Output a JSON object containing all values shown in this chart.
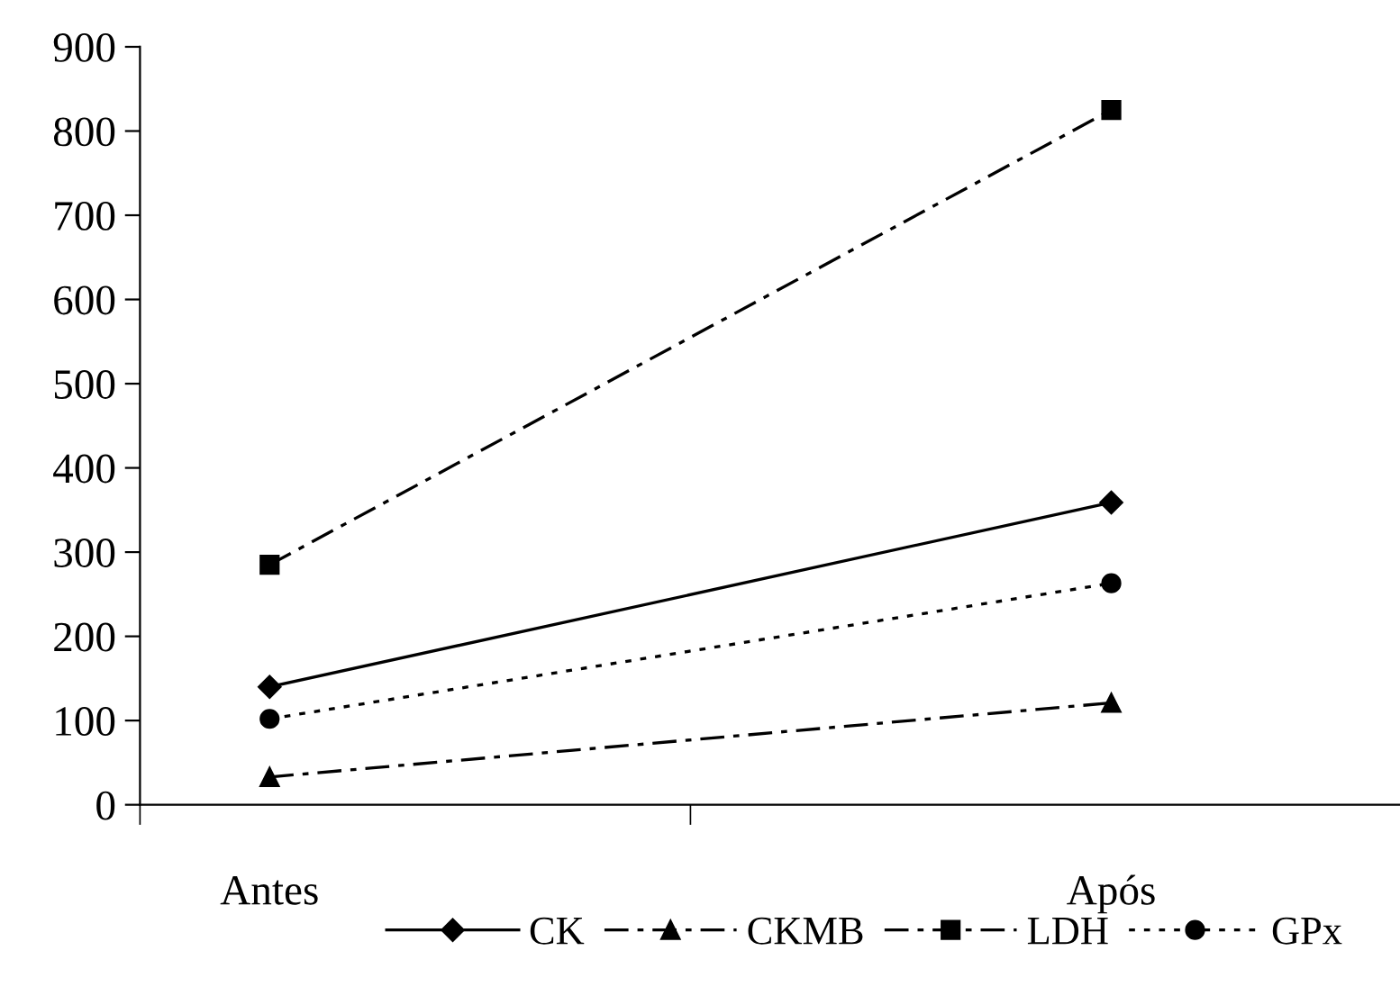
{
  "chart_data": {
    "type": "line",
    "categories": [
      "Antes",
      "Após"
    ],
    "series": [
      {
        "name": "CK",
        "color": "#000000",
        "values": [
          140,
          359
        ],
        "marker": "diamond",
        "line_style": "solid"
      },
      {
        "name": "CKMB",
        "color": "#000000",
        "values": [
          33,
          121
        ],
        "marker": "triangle",
        "line_style": "dashdot"
      },
      {
        "name": "LDH",
        "color": "#000000",
        "values": [
          285,
          825
        ],
        "marker": "square",
        "line_style": "dashdot"
      },
      {
        "name": "GPx",
        "color": "#000000",
        "values": [
          102,
          263
        ],
        "marker": "circle",
        "line_style": "dotted"
      }
    ],
    "ylim": [
      0,
      900
    ],
    "yticks": [
      0,
      100,
      200,
      300,
      400,
      500,
      600,
      700,
      800,
      900
    ],
    "grid": false,
    "legend": "bottom"
  }
}
